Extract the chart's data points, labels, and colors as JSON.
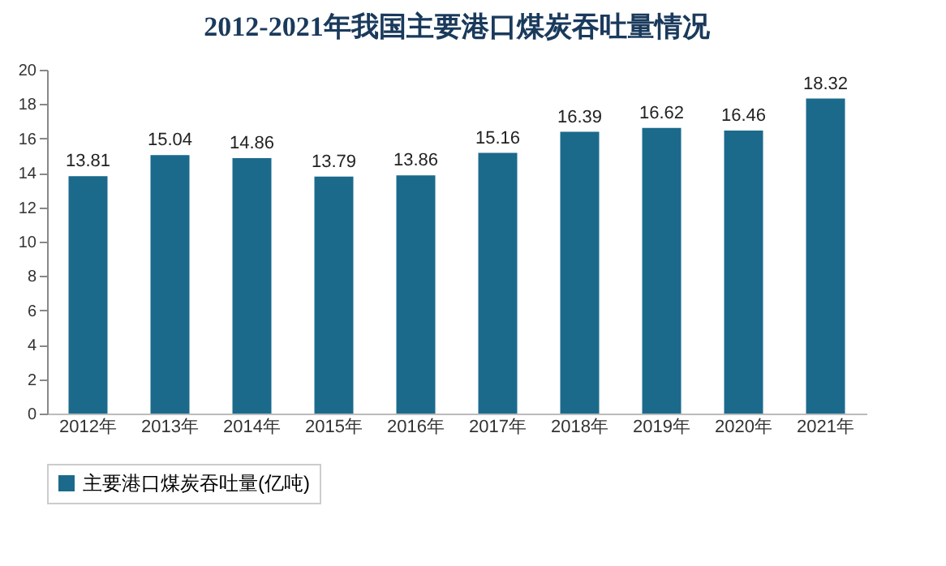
{
  "chart_data": {
    "type": "bar",
    "title": "2012-2021年我国主要港口煤炭吞吐量情况",
    "categories": [
      "2012年",
      "2013年",
      "2014年",
      "2015年",
      "2016年",
      "2017年",
      "2018年",
      "2019年",
      "2020年",
      "2021年"
    ],
    "series": [
      {
        "name": "主要港口煤炭吞吐量(亿吨)",
        "color": "#1b6a8c",
        "values": [
          13.81,
          15.04,
          14.86,
          13.79,
          13.86,
          15.16,
          16.39,
          16.62,
          16.46,
          18.32
        ]
      }
    ],
    "ylim": [
      0,
      20
    ],
    "yticks": [
      0,
      2,
      4,
      6,
      8,
      10,
      12,
      14,
      16,
      18,
      20
    ],
    "data_labels": true,
    "legend": "bottom",
    "grid": false
  }
}
